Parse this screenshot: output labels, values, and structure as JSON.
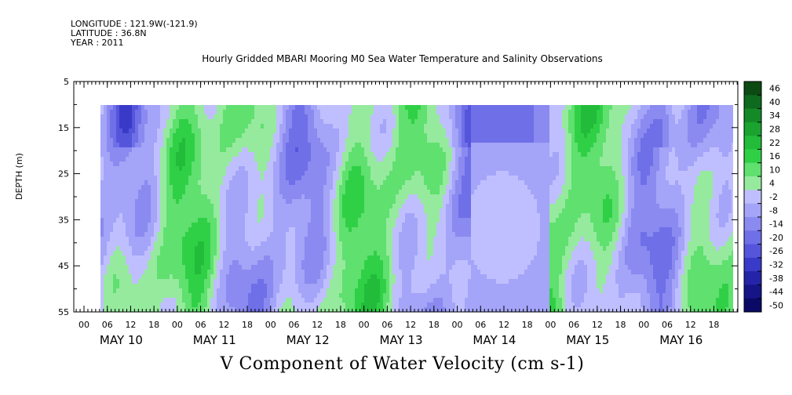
{
  "header": {
    "longitude": "LONGITUDE : 121.9W(-121.9)",
    "latitude": "LATITUDE : 36.8N",
    "year": "YEAR : 2011",
    "title": "Hourly Gridded MBARI Mooring M0 Sea Water Temperature and Salinity Observations"
  },
  "chart_data": {
    "type": "heatmap",
    "title": "Hourly Gridded MBARI Mooring M0 Sea Water Temperature and Salinity Observations",
    "variable_label": "V Component of Water Velocity (cm s-1)",
    "ylabel": "DEPTH (m)",
    "y_axis_inverted": true,
    "ylim": [
      5,
      55
    ],
    "y_ticks": [
      5,
      15,
      25,
      35,
      45,
      55
    ],
    "data_depth_range": [
      10,
      55
    ],
    "x_hour_ticks": [
      "00",
      "06",
      "12",
      "18",
      "00",
      "06",
      "12",
      "18",
      "00",
      "06",
      "12",
      "18",
      "00",
      "06",
      "12",
      "18",
      "00",
      "06",
      "12",
      "18",
      "00",
      "06",
      "12",
      "18",
      "00",
      "06",
      "12",
      "18"
    ],
    "x_day_labels": [
      "MAY 10",
      "MAY 11",
      "MAY 12",
      "MAY 13",
      "MAY 14",
      "MAY 15",
      "MAY 16"
    ],
    "colorbar_levels": [
      46,
      40,
      34,
      28,
      22,
      16,
      10,
      4,
      -2,
      -8,
      -14,
      -20,
      -26,
      -32,
      -38,
      -44,
      -50
    ],
    "colorbar_colors": [
      "#0b4a12",
      "#0e6a1e",
      "#138a27",
      "#1aa32f",
      "#22bb3a",
      "#30d046",
      "#5fe06f",
      "#96ea9e",
      "#bfbfff",
      "#a4a4f8",
      "#8a8af0",
      "#6f6fe8",
      "#5555dc",
      "#3a3ac8",
      "#2424a8",
      "#151588",
      "#0a0a66"
    ],
    "grid": false
  }
}
